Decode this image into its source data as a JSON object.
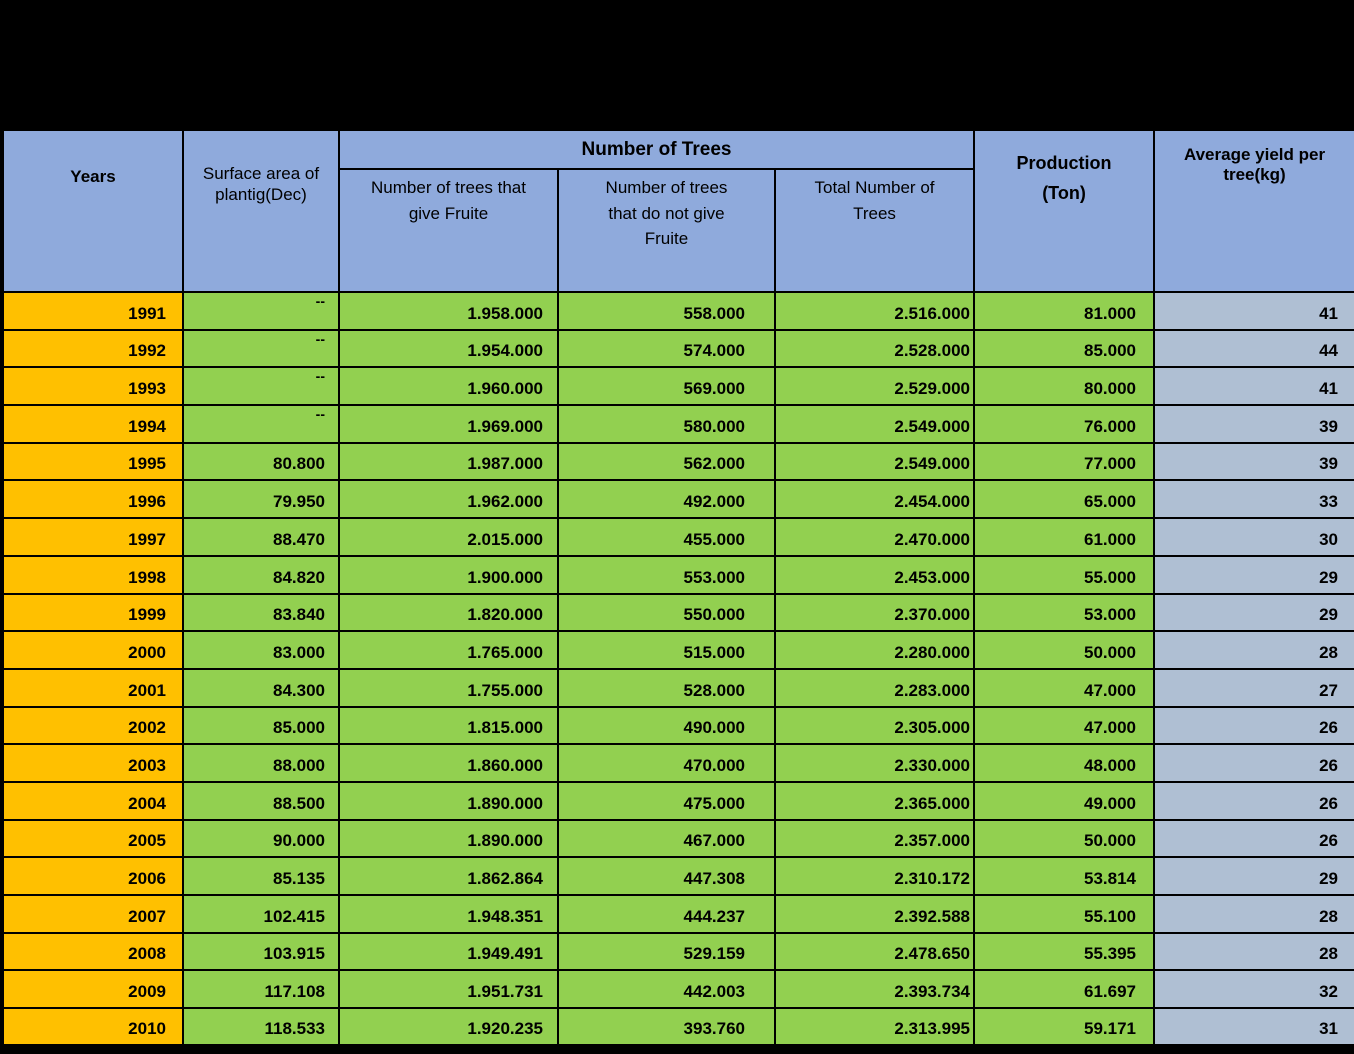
{
  "colors": {
    "page_background": "#000000",
    "header_blue": "#8FAADC",
    "year_orange": "#FFC000",
    "data_green": "#92D050",
    "yield_gray_blue": "#AFBFD3",
    "border": "#000000",
    "text": "#000000"
  },
  "chart_data": {
    "type": "table",
    "header": {
      "years": "Years",
      "surface_area": "Surface area of\nplantig(Dec)",
      "number_of_trees_group": "Number of Trees",
      "trees_give_fruit": "Number of trees that\ngive Fruite",
      "trees_no_fruit": "Number of trees\nthat do not give\nFruite",
      "total_trees": "Total Number of\nTrees",
      "production": "Production\n(Ton)",
      "avg_yield": "Average yield per\ntree(kg)"
    },
    "rows": [
      [
        "1991",
        "--",
        "1.958.000",
        "558.000",
        "2.516.000",
        "81.000",
        "41"
      ],
      [
        "1992",
        "--",
        "1.954.000",
        "574.000",
        "2.528.000",
        "85.000",
        "44"
      ],
      [
        "1993",
        "--",
        "1.960.000",
        "569.000",
        "2.529.000",
        "80.000",
        "41"
      ],
      [
        "1994",
        "--",
        "1.969.000",
        "580.000",
        "2.549.000",
        "76.000",
        "39"
      ],
      [
        "1995",
        "80.800",
        "1.987.000",
        "562.000",
        "2.549.000",
        "77.000",
        "39"
      ],
      [
        "1996",
        "79.950",
        "1.962.000",
        "492.000",
        "2.454.000",
        "65.000",
        "33"
      ],
      [
        "1997",
        "88.470",
        "2.015.000",
        "455.000",
        "2.470.000",
        "61.000",
        "30"
      ],
      [
        "1998",
        "84.820",
        "1.900.000",
        "553.000",
        "2.453.000",
        "55.000",
        "29"
      ],
      [
        "1999",
        "83.840",
        "1.820.000",
        "550.000",
        "2.370.000",
        "53.000",
        "29"
      ],
      [
        "2000",
        "83.000",
        "1.765.000",
        "515.000",
        "2.280.000",
        "50.000",
        "28"
      ],
      [
        "2001",
        "84.300",
        "1.755.000",
        "528.000",
        "2.283.000",
        "47.000",
        "27"
      ],
      [
        "2002",
        "85.000",
        "1.815.000",
        "490.000",
        "2.305.000",
        "47.000",
        "26"
      ],
      [
        "2003",
        "88.000",
        "1.860.000",
        "470.000",
        "2.330.000",
        "48.000",
        "26"
      ],
      [
        "2004",
        "88.500",
        "1.890.000",
        "475.000",
        "2.365.000",
        "49.000",
        "26"
      ],
      [
        "2005",
        "90.000",
        "1.890.000",
        "467.000",
        "2.357.000",
        "50.000",
        "26"
      ],
      [
        "2006",
        "85.135",
        "1.862.864",
        "447.308",
        "2.310.172",
        "53.814",
        "29"
      ],
      [
        "2007",
        "102.415",
        "1.948.351",
        "444.237",
        "2.392.588",
        "55.100",
        "28"
      ],
      [
        "2008",
        "103.915",
        "1.949.491",
        "529.159",
        "2.478.650",
        "55.395",
        "28"
      ],
      [
        "2009",
        "117.108",
        "1.951.731",
        "442.003",
        "2.393.734",
        "61.697",
        "32"
      ],
      [
        "2010",
        "118.533",
        "1.920.235",
        "393.760",
        "2.313.995",
        "59.171",
        "31"
      ]
    ]
  }
}
